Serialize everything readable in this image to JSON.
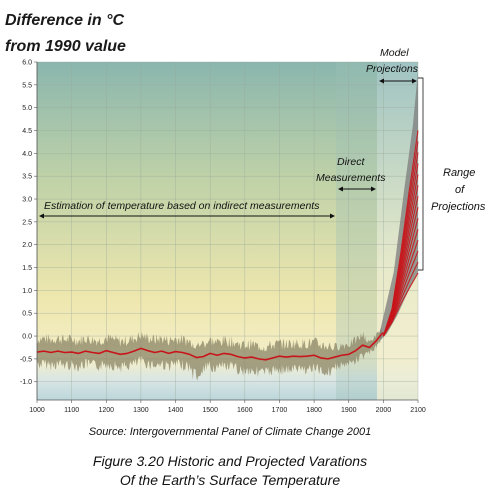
{
  "chart_data": {
    "type": "line",
    "ylabel_line1": "Difference in °C",
    "ylabel_line2": "from 1990 value",
    "xlim": [
      1000,
      2100
    ],
    "ylim": [
      -1.4,
      6.0
    ],
    "x_ticks": [
      "1000",
      "1100",
      "1200",
      "1300",
      "1400",
      "1500",
      "1600",
      "1700",
      "1800",
      "1900",
      "2000",
      "2100"
    ],
    "y_ticks": [
      "6.0",
      "5.5",
      "5.0",
      "4.5",
      "4.0",
      "3.5",
      "3.0",
      "2.5",
      "2.0",
      "1.5",
      "1.0",
      "0.5",
      "0.0",
      "-0.5",
      "-1.0"
    ],
    "grid": true,
    "series": [
      {
        "x": [
          1000,
          1020,
          1040,
          1060,
          1080,
          1100,
          1120,
          1140,
          1160,
          1180,
          1200,
          1220,
          1240,
          1260,
          1280,
          1300,
          1320,
          1340,
          1360,
          1380,
          1400,
          1420,
          1440,
          1460,
          1480,
          1500,
          1520,
          1540,
          1560,
          1580,
          1600,
          1620,
          1640,
          1660,
          1680,
          1700,
          1720,
          1740,
          1760,
          1780,
          1800,
          1820,
          1840,
          1860,
          1880,
          1900,
          1920,
          1940,
          1960,
          1980,
          1990,
          2000
        ],
        "values": [
          -0.35,
          -0.33,
          -0.36,
          -0.33,
          -0.36,
          -0.35,
          -0.38,
          -0.33,
          -0.36,
          -0.38,
          -0.32,
          -0.36,
          -0.4,
          -0.38,
          -0.33,
          -0.27,
          -0.32,
          -0.36,
          -0.33,
          -0.38,
          -0.34,
          -0.36,
          -0.4,
          -0.47,
          -0.45,
          -0.38,
          -0.42,
          -0.38,
          -0.4,
          -0.45,
          -0.48,
          -0.46,
          -0.5,
          -0.52,
          -0.48,
          -0.44,
          -0.46,
          -0.44,
          -0.45,
          -0.44,
          -0.42,
          -0.48,
          -0.5,
          -0.46,
          -0.42,
          -0.4,
          -0.32,
          -0.2,
          -0.25,
          -0.1,
          0.0,
          0.08
        ]
      }
    ],
    "projections_lower": [
      0.0,
      0.3,
      0.7,
      1.05,
      1.38
    ],
    "projections_upper": [
      0.0,
      0.6,
      1.8,
      3.2,
      4.5
    ],
    "projection_years": [
      2000,
      2025,
      2050,
      2075,
      2100
    ],
    "uncertainty_upper_2100": 5.8,
    "uncertainty_lower_2100": 1.4,
    "colors": {
      "temperature_line": "#c8151b",
      "uncertainty_band": "#8a8466",
      "projection_lines": "#c8151b",
      "projection_band": "#7c7c7c"
    }
  },
  "annotations": {
    "model_projections_line1": "Model",
    "model_projections_line2": "Projections",
    "direct_measurements_line1": "Direct",
    "direct_measurements_line2": "Measurements",
    "indirect_estimation": "Estimation of temperature based on indirect measurements",
    "range_line1": "Range",
    "range_line2": "of",
    "range_line3": "Projections"
  },
  "source": "Source: Intergovernmental Panel of Climate Change 2001",
  "caption_line1": "Figure 3.20 Historic and Projected Varations",
  "caption_line2": "Of the Earth’s Surface Temperature"
}
